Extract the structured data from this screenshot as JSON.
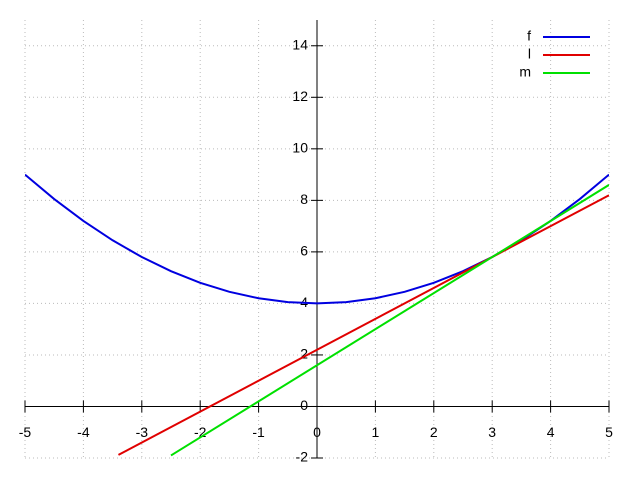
{
  "chart_data": {
    "type": "line",
    "xlim": [
      -5,
      5
    ],
    "ylim": [
      -2,
      15
    ],
    "xticks": [
      -5,
      -4,
      -3,
      -2,
      -1,
      0,
      1,
      2,
      3,
      4,
      5
    ],
    "yticks": [
      -2,
      0,
      2,
      4,
      6,
      8,
      10,
      12,
      14
    ],
    "grid": true,
    "legend": "top-right",
    "series": [
      {
        "name": "f",
        "color": "#0000e0",
        "x": [
          -5,
          -4.5,
          -4,
          -3.5,
          -3,
          -2.5,
          -2,
          -1.5,
          -1,
          -0.5,
          0,
          0.5,
          1,
          1.5,
          2,
          2.5,
          3,
          3.5,
          4,
          4.5,
          5
        ],
        "values": [
          9,
          8.05,
          7.2,
          6.45,
          5.8,
          5.25,
          4.8,
          4.45,
          4.2,
          4.05,
          4,
          4.05,
          4.2,
          4.45,
          4.8,
          5.25,
          5.8,
          6.45,
          7.2,
          8.05,
          9
        ]
      },
      {
        "name": "l",
        "color": "#e00000",
        "x": [
          -3.4,
          5
        ],
        "values": [
          -1.88,
          8.2
        ]
      },
      {
        "name": "m",
        "color": "#00e000",
        "x": [
          -2.5,
          5
        ],
        "values": [
          -1.9,
          8.6
        ]
      }
    ]
  }
}
